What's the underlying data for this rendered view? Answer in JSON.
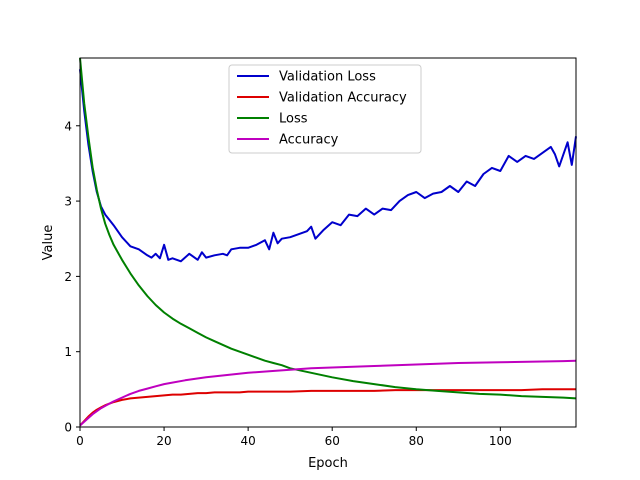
{
  "chart_data": {
    "type": "line",
    "title": "",
    "xlabel": "Epoch",
    "ylabel": "Value",
    "xlim": [
      0,
      118
    ],
    "ylim": [
      0,
      4.9
    ],
    "xticks": [
      0,
      20,
      40,
      60,
      80,
      100
    ],
    "yticks": [
      0,
      1,
      2,
      3,
      4
    ],
    "legend": "top-center",
    "grid": false,
    "series": [
      {
        "name": "Validation Loss",
        "color": "#0000cc",
        "x": [
          0,
          1,
          2,
          3,
          4,
          5,
          6,
          7,
          8,
          10,
          12,
          14,
          16,
          17,
          18,
          19,
          20,
          21,
          22,
          23,
          24,
          26,
          28,
          29,
          30,
          32,
          34,
          35,
          36,
          38,
          40,
          42,
          44,
          45,
          46,
          47,
          48,
          50,
          52,
          54,
          55,
          56,
          58,
          60,
          62,
          64,
          66,
          68,
          70,
          72,
          74,
          76,
          78,
          80,
          82,
          84,
          86,
          88,
          90,
          92,
          94,
          96,
          98,
          100,
          102,
          104,
          106,
          108,
          110,
          112,
          113,
          114,
          116,
          117,
          118
        ],
        "values": [
          4.75,
          4.2,
          3.75,
          3.4,
          3.12,
          2.93,
          2.82,
          2.75,
          2.68,
          2.52,
          2.4,
          2.36,
          2.28,
          2.25,
          2.3,
          2.24,
          2.42,
          2.22,
          2.24,
          2.22,
          2.2,
          2.3,
          2.22,
          2.32,
          2.25,
          2.28,
          2.3,
          2.28,
          2.36,
          2.38,
          2.38,
          2.42,
          2.48,
          2.36,
          2.58,
          2.44,
          2.5,
          2.52,
          2.56,
          2.6,
          2.66,
          2.5,
          2.62,
          2.72,
          2.68,
          2.82,
          2.8,
          2.9,
          2.82,
          2.9,
          2.88,
          3.0,
          3.08,
          3.12,
          3.04,
          3.1,
          3.12,
          3.2,
          3.12,
          3.26,
          3.2,
          3.36,
          3.44,
          3.4,
          3.6,
          3.52,
          3.6,
          3.56,
          3.64,
          3.72,
          3.62,
          3.46,
          3.78,
          3.48,
          3.86
        ]
      },
      {
        "name": "Validation Accuracy",
        "color": "#dd0000",
        "x": [
          0,
          1,
          2,
          3,
          4,
          5,
          6,
          8,
          10,
          12,
          14,
          16,
          18,
          20,
          22,
          24,
          26,
          28,
          30,
          32,
          34,
          36,
          38,
          40,
          45,
          50,
          55,
          60,
          65,
          70,
          75,
          80,
          85,
          90,
          95,
          100,
          105,
          110,
          115,
          118
        ],
        "values": [
          0.02,
          0.08,
          0.14,
          0.19,
          0.23,
          0.26,
          0.29,
          0.33,
          0.36,
          0.38,
          0.39,
          0.4,
          0.41,
          0.42,
          0.43,
          0.43,
          0.44,
          0.45,
          0.45,
          0.46,
          0.46,
          0.46,
          0.46,
          0.47,
          0.47,
          0.47,
          0.48,
          0.48,
          0.48,
          0.48,
          0.49,
          0.49,
          0.49,
          0.49,
          0.49,
          0.49,
          0.49,
          0.5,
          0.5,
          0.5
        ]
      },
      {
        "name": "Loss",
        "color": "#008000",
        "x": [
          0,
          1,
          2,
          3,
          4,
          5,
          6,
          7,
          8,
          10,
          12,
          14,
          16,
          18,
          20,
          22,
          24,
          26,
          28,
          30,
          32,
          34,
          36,
          38,
          40,
          42,
          44,
          46,
          48,
          50,
          55,
          60,
          65,
          70,
          75,
          80,
          85,
          90,
          95,
          100,
          105,
          110,
          115,
          118
        ],
        "values": [
          4.9,
          4.3,
          3.85,
          3.45,
          3.15,
          2.9,
          2.7,
          2.55,
          2.42,
          2.22,
          2.04,
          1.88,
          1.74,
          1.62,
          1.52,
          1.44,
          1.37,
          1.31,
          1.25,
          1.19,
          1.14,
          1.09,
          1.04,
          1.0,
          0.96,
          0.92,
          0.88,
          0.85,
          0.82,
          0.78,
          0.72,
          0.66,
          0.61,
          0.57,
          0.53,
          0.5,
          0.48,
          0.46,
          0.44,
          0.43,
          0.41,
          0.4,
          0.39,
          0.38
        ]
      },
      {
        "name": "Accuracy",
        "color": "#bf00bf",
        "x": [
          0,
          1,
          2,
          3,
          4,
          5,
          6,
          8,
          10,
          12,
          14,
          16,
          18,
          20,
          25,
          30,
          35,
          40,
          45,
          50,
          55,
          60,
          65,
          70,
          75,
          80,
          85,
          90,
          95,
          100,
          105,
          110,
          115,
          118
        ],
        "values": [
          0.02,
          0.07,
          0.12,
          0.17,
          0.21,
          0.25,
          0.28,
          0.34,
          0.39,
          0.44,
          0.48,
          0.51,
          0.54,
          0.57,
          0.62,
          0.66,
          0.69,
          0.72,
          0.74,
          0.76,
          0.78,
          0.79,
          0.8,
          0.81,
          0.82,
          0.83,
          0.84,
          0.85,
          0.855,
          0.86,
          0.865,
          0.87,
          0.875,
          0.88
        ]
      }
    ]
  }
}
